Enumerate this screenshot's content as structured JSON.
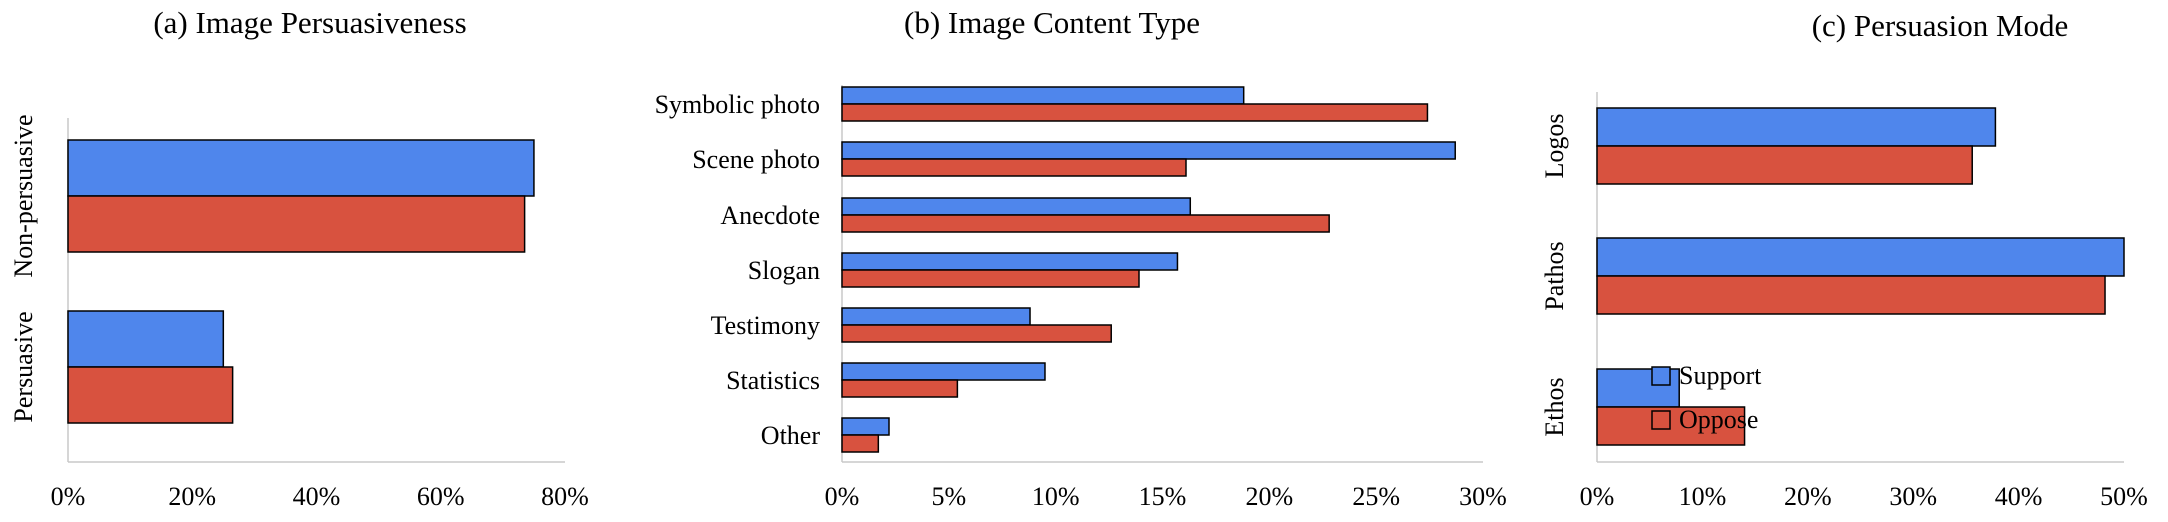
{
  "colors": {
    "support": "#4f86ec",
    "oppose": "#d8523f"
  },
  "legend": {
    "position": "bottom-right",
    "entries": [
      "Support",
      "Oppose"
    ]
  },
  "chart_data": [
    {
      "type": "bar",
      "orientation": "horizontal",
      "title": "(a) Image Persuasiveness",
      "categories": [
        "Non-persuasive",
        "Persuasive"
      ],
      "series": [
        {
          "name": "Support",
          "values": [
            75,
            25
          ]
        },
        {
          "name": "Oppose",
          "values": [
            73.5,
            26.5
          ]
        }
      ],
      "xlim": [
        0,
        80
      ],
      "xticks": [
        "0%",
        "20%",
        "40%",
        "60%",
        "80%"
      ]
    },
    {
      "type": "bar",
      "orientation": "horizontal",
      "title": "(b) Image Content Type",
      "categories": [
        "Symbolic photo",
        "Scene photo",
        "Anecdote",
        "Slogan",
        "Testimony",
        "Statistics",
        "Other"
      ],
      "series": [
        {
          "name": "Support",
          "values": [
            18.8,
            28.7,
            16.3,
            15.7,
            8.8,
            9.5,
            2.2
          ]
        },
        {
          "name": "Oppose",
          "values": [
            27.4,
            16.1,
            22.8,
            13.9,
            12.6,
            5.4,
            1.7
          ]
        }
      ],
      "xlim": [
        0,
        30
      ],
      "xticks": [
        "0%",
        "5%",
        "10%",
        "15%",
        "20%",
        "25%",
        "30%"
      ]
    },
    {
      "type": "bar",
      "orientation": "horizontal",
      "title": "(c) Persuasion Mode",
      "categories": [
        "Logos",
        "Pathos",
        "Ethos"
      ],
      "series": [
        {
          "name": "Support",
          "values": [
            37.8,
            50,
            7.8
          ]
        },
        {
          "name": "Oppose",
          "values": [
            35.6,
            48.2,
            14
          ]
        }
      ],
      "xlim": [
        0,
        50
      ],
      "xticks": [
        "0%",
        "10%",
        "20%",
        "30%",
        "40%",
        "50%"
      ]
    }
  ]
}
